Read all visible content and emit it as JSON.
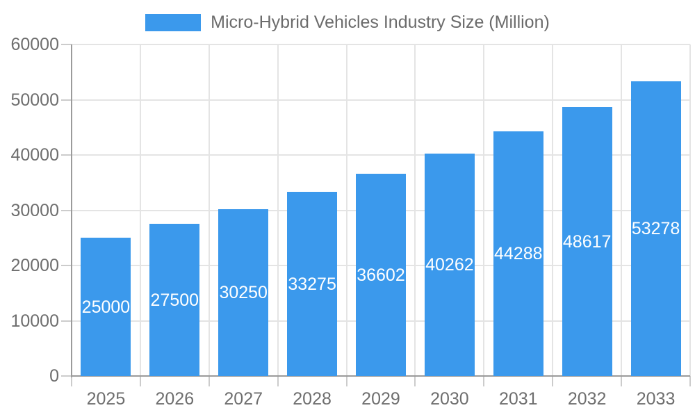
{
  "legend": {
    "label": "Micro-Hybrid Vehicles Industry Size (Million)",
    "swatch_color": "#3B99EC"
  },
  "chart_data": {
    "type": "bar",
    "title": "Micro-Hybrid Vehicles Industry Size (Million)",
    "categories": [
      "2025",
      "2026",
      "2027",
      "2028",
      "2029",
      "2030",
      "2031",
      "2032",
      "2033"
    ],
    "values": [
      25000,
      27500,
      30250,
      33275,
      36602,
      40262,
      44288,
      48617,
      53278
    ],
    "series": [
      {
        "name": "Micro-Hybrid Vehicles Industry Size (Million)",
        "values": [
          25000,
          27500,
          30250,
          33275,
          36602,
          40262,
          44288,
          48617,
          53278
        ]
      }
    ],
    "value_labels": [
      "25000",
      "27500",
      "30250",
      "33275",
      "36602",
      "40262",
      "44288",
      "48617",
      "53278"
    ],
    "xlabel": "",
    "ylabel": "",
    "ylim": [
      0,
      60000
    ],
    "yticks": [
      0,
      10000,
      20000,
      30000,
      40000,
      50000,
      60000
    ],
    "ytick_labels": [
      "0",
      "10000",
      "20000",
      "30000",
      "40000",
      "50000",
      "60000"
    ],
    "grid": true,
    "legend_position": "top"
  },
  "colors": {
    "bar": "#3B99EC",
    "value_label_text": "#FFFFFF",
    "axis_label_text": "#6E6E6E",
    "legend_text": "#6B6B6B",
    "gridline": "#E4E4E4",
    "axis_line": "#9B9B9B",
    "tick": "#CCCCCC",
    "background": "#FFFFFF"
  }
}
